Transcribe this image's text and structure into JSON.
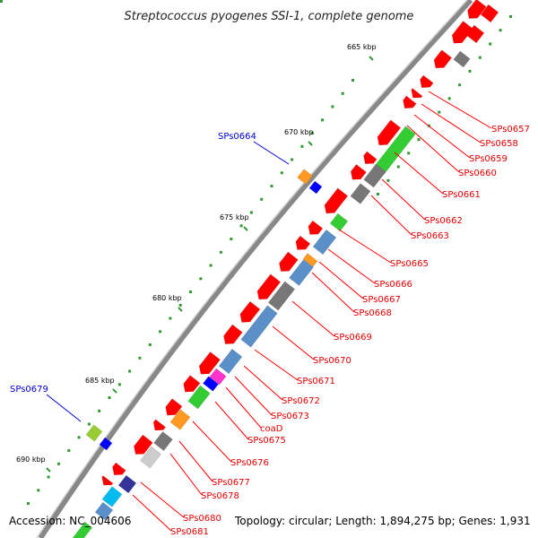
{
  "title": "Streptococcus pyogenes SSI-1, complete genome",
  "footer": {
    "accession": "Accession: NC_004606",
    "topology": "Topology: circular; Length: 1,894,275 bp; Genes: 1,931"
  },
  "kbp_labels": [
    "665 kbp",
    "670 kbp",
    "675 kbp",
    "680 kbp",
    "685 kbp",
    "690 kbp"
  ],
  "gene_labels_red": [
    "SPs0657",
    "SPs0658",
    "SPs0659",
    "SPs0660",
    "SPs0661",
    "SPs0662",
    "SPs0663",
    "SPs0665",
    "SPs0666",
    "SPs0667",
    "SPs0668",
    "SPs0669",
    "SPs0670",
    "SPs0671",
    "SPs0672",
    "SPs0673",
    "coaD",
    "SPs0675",
    "SPs0676",
    "SPs0677",
    "SPs0678",
    "SPs0680",
    "SPs0681"
  ],
  "gene_labels_blue": [
    "SPs0664",
    "SPs0679"
  ],
  "colors": {
    "red": "#ff0000",
    "green": "#33cc33",
    "gray": "#777777",
    "lightgray": "#cccccc",
    "steelblue": "#5b8fc7",
    "orange": "#ff9922",
    "blue": "#0000ff",
    "magenta": "#ff33cc",
    "navy": "#333399",
    "cyan": "#00bbee",
    "olive": "#99cc33",
    "backbone": "#888888",
    "dots": "#339933",
    "label_red": "#e00000",
    "label_blue": "#0000cc"
  }
}
